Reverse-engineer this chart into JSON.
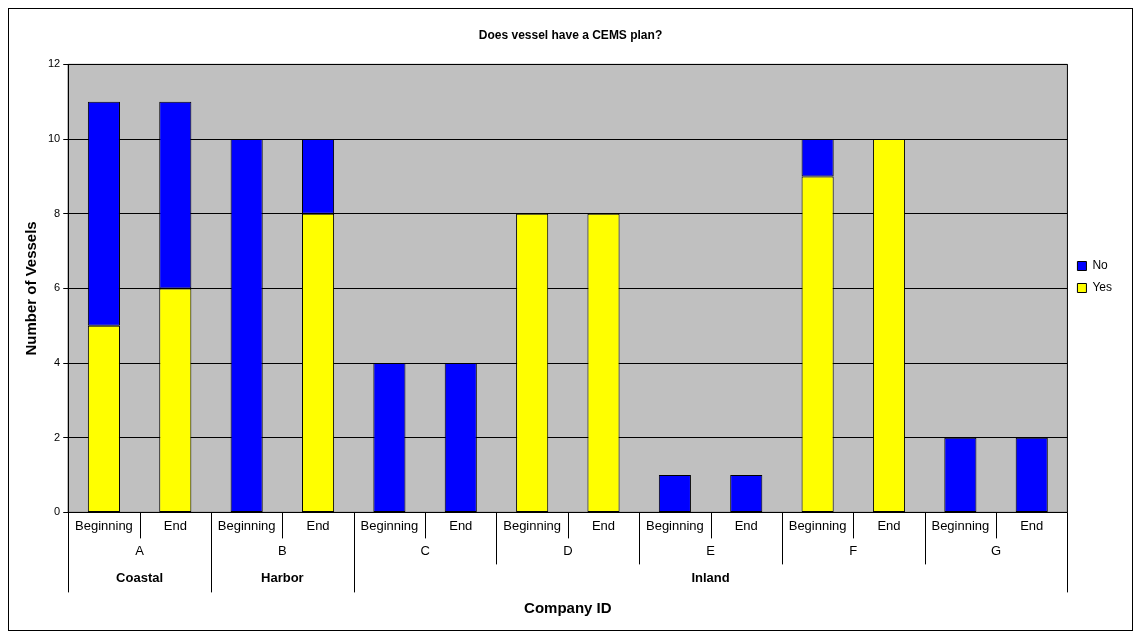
{
  "chart_data": {
    "type": "bar",
    "title": "Does vessel have a CEMS plan?",
    "xlabel": "Company ID",
    "ylabel": "Number of Vessels",
    "categories": [
      "Beginning",
      "End",
      "Beginning",
      "End",
      "Beginning",
      "End",
      "Beginning",
      "End",
      "Beginning",
      "End",
      "Beginning",
      "End",
      "Beginning",
      "End"
    ],
    "series": [
      {
        "name": "Yes",
        "color": "#ffff00",
        "values": [
          5,
          6,
          0,
          8,
          0,
          0,
          8,
          8,
          0,
          0,
          9,
          10,
          0,
          0
        ]
      },
      {
        "name": "No",
        "color": "#0000ff",
        "values": [
          6,
          5,
          10,
          2,
          4,
          4,
          0,
          0,
          1,
          1,
          1,
          0,
          2,
          2
        ]
      }
    ],
    "stacked": true,
    "ylim": [
      0,
      12
    ],
    "yticks": [
      0,
      2,
      4,
      6,
      8,
      10,
      12
    ],
    "grid": "y",
    "legend": "right",
    "annotations": [
      "A",
      "B",
      "C",
      "D",
      "E",
      "F",
      "G",
      "Coastal",
      "Harbor",
      "Inland"
    ]
  }
}
